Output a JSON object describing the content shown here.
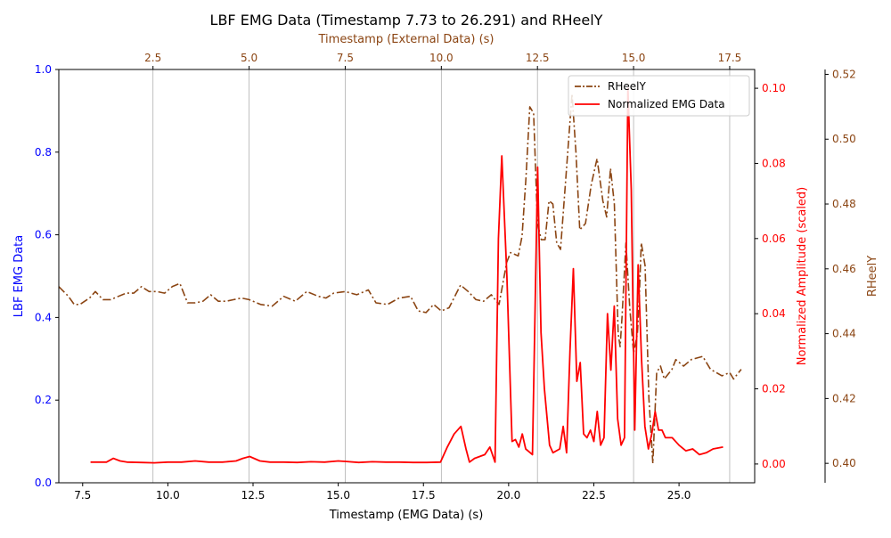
{
  "chart_data": {
    "type": "line",
    "title": "LBF EMG Data (Timestamp 7.73 to 26.291) and RHeelY",
    "axes": {
      "bottom": {
        "label": "Timestamp (EMG Data) (s)",
        "range": [
          6.8,
          27.22
        ],
        "ticks": [
          7.5,
          10.0,
          12.5,
          15.0,
          17.5,
          20.0,
          22.5,
          25.0
        ],
        "tick_labels": [
          "7.5",
          "10.0",
          "12.5",
          "15.0",
          "17.5",
          "20.0",
          "22.5",
          "25.0"
        ],
        "color": "#000000"
      },
      "top": {
        "label": "Timestamp (External Data) (s)",
        "range": [
          0.05,
          18.15
        ],
        "ticks": [
          2.5,
          5.0,
          7.5,
          10.0,
          12.5,
          15.0,
          17.5
        ],
        "tick_labels": [
          "2.5",
          "5.0",
          "7.5",
          "10.0",
          "12.5",
          "15.0",
          "17.5"
        ],
        "color": "#8B4513",
        "grid": true
      },
      "left": {
        "label": "LBF EMG Data",
        "range": [
          0.0,
          1.0
        ],
        "ticks": [
          0.0,
          0.2,
          0.4,
          0.6,
          0.8,
          1.0
        ],
        "tick_labels": [
          "0.0",
          "0.2",
          "0.4",
          "0.6",
          "0.8",
          "1.0"
        ],
        "color": "#0000ff"
      },
      "right": {
        "label": "Normalized Amplitude (scaled)",
        "range": [
          -0.005,
          0.105
        ],
        "ticks": [
          0.0,
          0.02,
          0.04,
          0.06,
          0.08,
          0.1
        ],
        "tick_labels": [
          "0.00",
          "0.02",
          "0.04",
          "0.06",
          "0.08",
          "0.10"
        ],
        "color": "#ff0000"
      },
      "right2": {
        "label": "RHeelY",
        "range": [
          0.394,
          0.5215
        ],
        "ticks": [
          0.4,
          0.42,
          0.44,
          0.46,
          0.48,
          0.5,
          0.52
        ],
        "tick_labels": [
          "0.40",
          "0.42",
          "0.44",
          "0.46",
          "0.48",
          "0.50",
          "0.52"
        ],
        "color": "#8B4513"
      }
    },
    "legend": {
      "placement": "top-right",
      "entries": [
        "RHeelY",
        "Normalized EMG Data"
      ]
    },
    "series": [
      {
        "name": "RHeelY",
        "axis_x": "top",
        "axis_y": "right2",
        "color": "#8B4513",
        "style": "dashdot",
        "x": [
          0.05,
          0.3,
          0.45,
          0.6,
          0.85,
          1.0,
          1.2,
          1.4,
          1.6,
          1.8,
          2.0,
          2.2,
          2.4,
          2.6,
          2.8,
          3.0,
          3.2,
          3.4,
          3.6,
          3.8,
          4.0,
          4.2,
          4.4,
          4.6,
          4.8,
          5.0,
          5.3,
          5.6,
          5.9,
          6.2,
          6.5,
          6.8,
          7.0,
          7.2,
          7.5,
          7.8,
          8.1,
          8.3,
          8.6,
          8.9,
          9.2,
          9.4,
          9.6,
          9.8,
          10.0,
          10.2,
          10.5,
          10.7,
          10.9,
          11.1,
          11.3,
          11.5,
          11.7,
          11.8,
          11.9,
          12.0,
          12.1,
          12.2,
          12.3,
          12.4,
          12.5,
          12.6,
          12.7,
          12.8,
          12.9,
          13.0,
          13.1,
          13.25,
          13.4,
          13.5,
          13.6,
          13.75,
          13.9,
          14.05,
          14.2,
          14.3,
          14.4,
          14.5,
          14.6,
          14.65,
          14.7,
          14.8,
          14.9,
          15.0,
          15.1,
          15.15,
          15.2,
          15.3,
          15.4,
          15.5,
          15.6,
          15.7,
          15.8,
          16.0,
          16.1,
          16.3,
          16.5,
          16.8,
          17.0,
          17.3,
          17.5,
          17.6,
          17.8
        ],
        "y": [
          0.4545,
          0.4515,
          0.449,
          0.449,
          0.451,
          0.453,
          0.4505,
          0.4505,
          0.4515,
          0.4525,
          0.4525,
          0.4545,
          0.453,
          0.453,
          0.4525,
          0.4545,
          0.4555,
          0.4495,
          0.4495,
          0.45,
          0.452,
          0.45,
          0.45,
          0.4505,
          0.451,
          0.4505,
          0.449,
          0.4485,
          0.4515,
          0.45,
          0.453,
          0.4515,
          0.451,
          0.4525,
          0.453,
          0.452,
          0.4535,
          0.4495,
          0.449,
          0.451,
          0.4515,
          0.447,
          0.4465,
          0.449,
          0.447,
          0.448,
          0.455,
          0.453,
          0.4505,
          0.45,
          0.452,
          0.449,
          0.462,
          0.465,
          0.4645,
          0.464,
          0.47,
          0.488,
          0.51,
          0.508,
          0.474,
          0.469,
          0.469,
          0.481,
          0.48,
          0.468,
          0.466,
          0.49,
          0.514,
          0.496,
          0.472,
          0.474,
          0.486,
          0.494,
          0.481,
          0.476,
          0.491,
          0.48,
          0.44,
          0.436,
          0.445,
          0.468,
          0.448,
          0.434,
          0.44,
          0.452,
          0.468,
          0.461,
          0.42,
          0.4,
          0.428,
          0.43,
          0.426,
          0.429,
          0.432,
          0.43,
          0.432,
          0.433,
          0.429,
          0.427,
          0.428,
          0.426,
          0.429
        ]
      },
      {
        "name": "Normalized EMG Data",
        "axis_x": "bottom",
        "axis_y": "right",
        "color": "#ff0000",
        "style": "solid",
        "x": [
          7.73,
          8.0,
          8.2,
          8.4,
          8.6,
          8.8,
          9.2,
          9.6,
          10.0,
          10.4,
          10.8,
          11.2,
          11.6,
          12.0,
          12.2,
          12.4,
          12.7,
          13.0,
          13.4,
          13.8,
          14.2,
          14.6,
          15.0,
          15.2,
          15.6,
          16.0,
          16.4,
          16.8,
          17.2,
          17.6,
          18.0,
          18.2,
          18.4,
          18.6,
          18.75,
          18.85,
          19.0,
          19.3,
          19.45,
          19.6,
          19.7,
          19.8,
          19.95,
          20.1,
          20.2,
          20.3,
          20.4,
          20.5,
          20.7,
          20.85,
          20.95,
          21.05,
          21.2,
          21.3,
          21.5,
          21.6,
          21.7,
          21.8,
          21.9,
          22.0,
          22.1,
          22.2,
          22.3,
          22.4,
          22.5,
          22.6,
          22.7,
          22.8,
          22.9,
          23.0,
          23.1,
          23.2,
          23.3,
          23.4,
          23.5,
          23.6,
          23.7,
          23.8,
          23.9,
          24.0,
          24.1,
          24.2,
          24.3,
          24.4,
          24.5,
          24.6,
          24.7,
          24.8,
          25.0,
          25.2,
          25.4,
          25.6,
          25.8,
          26.0,
          26.291
        ],
        "y": [
          0.0005,
          0.0005,
          0.0005,
          0.0015,
          0.0008,
          0.0005,
          0.0004,
          0.0003,
          0.0005,
          0.0005,
          0.0008,
          0.0005,
          0.0005,
          0.0008,
          0.0015,
          0.002,
          0.0008,
          0.0005,
          0.0005,
          0.0004,
          0.0006,
          0.0005,
          0.0008,
          0.0007,
          0.0004,
          0.0006,
          0.0005,
          0.0005,
          0.0004,
          0.0004,
          0.0005,
          0.0045,
          0.008,
          0.01,
          0.004,
          0.0005,
          0.0015,
          0.0025,
          0.0045,
          0.0005,
          0.06,
          0.082,
          0.05,
          0.006,
          0.0065,
          0.0045,
          0.008,
          0.004,
          0.0025,
          0.079,
          0.035,
          0.02,
          0.005,
          0.003,
          0.004,
          0.01,
          0.003,
          0.03,
          0.052,
          0.022,
          0.027,
          0.008,
          0.007,
          0.009,
          0.006,
          0.014,
          0.005,
          0.007,
          0.04,
          0.025,
          0.042,
          0.012,
          0.005,
          0.007,
          0.1,
          0.073,
          0.009,
          0.053,
          0.028,
          0.01,
          0.004,
          0.008,
          0.014,
          0.009,
          0.009,
          0.007,
          0.007,
          0.007,
          0.005,
          0.0035,
          0.004,
          0.0025,
          0.003,
          0.004,
          0.0045
        ]
      }
    ]
  }
}
